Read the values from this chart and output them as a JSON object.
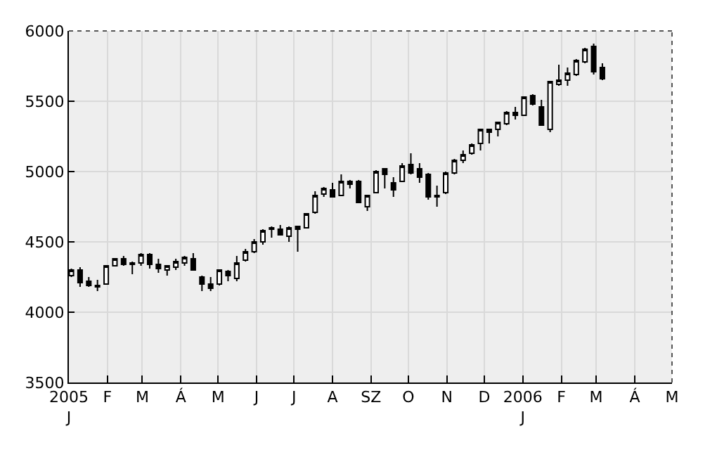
{
  "chart_data": {
    "type": "candlestick",
    "x": [
      "2005-01-03",
      "2005-01-10",
      "2005-01-17",
      "2005-01-24",
      "2005-01-31",
      "2005-02-07",
      "2005-02-14",
      "2005-02-21",
      "2005-02-28",
      "2005-03-07",
      "2005-03-14",
      "2005-03-21",
      "2005-03-28",
      "2005-04-04",
      "2005-04-11",
      "2005-04-18",
      "2005-04-25",
      "2005-05-02",
      "2005-05-09",
      "2005-05-16",
      "2005-05-23",
      "2005-05-30",
      "2005-06-06",
      "2005-06-13",
      "2005-06-20",
      "2005-06-27",
      "2005-07-04",
      "2005-07-11",
      "2005-07-18",
      "2005-07-25",
      "2005-08-01",
      "2005-08-08",
      "2005-08-15",
      "2005-08-22",
      "2005-08-29",
      "2005-09-05",
      "2005-09-12",
      "2005-09-19",
      "2005-09-26",
      "2005-10-03",
      "2005-10-10",
      "2005-10-17",
      "2005-10-24",
      "2005-10-31",
      "2005-11-07",
      "2005-11-14",
      "2005-11-21",
      "2005-11-28",
      "2005-12-05",
      "2005-12-12",
      "2005-12-19",
      "2005-12-26",
      "2006-01-02",
      "2006-01-09",
      "2006-01-16",
      "2006-01-23",
      "2006-01-30",
      "2006-02-06",
      "2006-02-13",
      "2006-02-20",
      "2006-02-27",
      "2006-03-06"
    ],
    "ohlc": [
      [
        4260,
        4310,
        4250,
        4300
      ],
      [
        4300,
        4320,
        4180,
        4210
      ],
      [
        4220,
        4250,
        4180,
        4190
      ],
      [
        4190,
        4230,
        4150,
        4180
      ],
      [
        4200,
        4330,
        4200,
        4330
      ],
      [
        4330,
        4380,
        4330,
        4380
      ],
      [
        4380,
        4400,
        4330,
        4340
      ],
      [
        4350,
        4360,
        4270,
        4340
      ],
      [
        4350,
        4420,
        4330,
        4410
      ],
      [
        4410,
        4420,
        4310,
        4340
      ],
      [
        4340,
        4380,
        4280,
        4310
      ],
      [
        4300,
        4330,
        4260,
        4330
      ],
      [
        4320,
        4380,
        4300,
        4360
      ],
      [
        4350,
        4400,
        4330,
        4390
      ],
      [
        4380,
        4420,
        4300,
        4300
      ],
      [
        4250,
        4260,
        4150,
        4200
      ],
      [
        4200,
        4250,
        4150,
        4170
      ],
      [
        4200,
        4300,
        4190,
        4300
      ],
      [
        4290,
        4300,
        4220,
        4260
      ],
      [
        4240,
        4400,
        4220,
        4350
      ],
      [
        4370,
        4450,
        4360,
        4430
      ],
      [
        4430,
        4520,
        4420,
        4500
      ],
      [
        4500,
        4590,
        4480,
        4580
      ],
      [
        4600,
        4610,
        4530,
        4590
      ],
      [
        4590,
        4620,
        4550,
        4550
      ],
      [
        4540,
        4610,
        4500,
        4600
      ],
      [
        4610,
        4610,
        4430,
        4590
      ],
      [
        4600,
        4700,
        4600,
        4700
      ],
      [
        4710,
        4860,
        4700,
        4830
      ],
      [
        4840,
        4890,
        4820,
        4880
      ],
      [
        4870,
        4920,
        4820,
        4820
      ],
      [
        4830,
        4980,
        4830,
        4930
      ],
      [
        4930,
        4940,
        4880,
        4910
      ],
      [
        4930,
        4940,
        4780,
        4780
      ],
      [
        4750,
        4830,
        4720,
        4830
      ],
      [
        4850,
        5010,
        4850,
        5000
      ],
      [
        5020,
        5020,
        4880,
        4980
      ],
      [
        4920,
        4960,
        4820,
        4870
      ],
      [
        4930,
        5060,
        4930,
        5040
      ],
      [
        5050,
        5130,
        4980,
        4990
      ],
      [
        5020,
        5060,
        4920,
        4960
      ],
      [
        4980,
        4990,
        4800,
        4820
      ],
      [
        4830,
        4900,
        4750,
        4820
      ],
      [
        4850,
        5000,
        4840,
        4990
      ],
      [
        4990,
        5090,
        4980,
        5080
      ],
      [
        5080,
        5150,
        5060,
        5120
      ],
      [
        5130,
        5200,
        5120,
        5190
      ],
      [
        5200,
        5300,
        5150,
        5300
      ],
      [
        5300,
        5300,
        5200,
        5280
      ],
      [
        5300,
        5350,
        5250,
        5350
      ],
      [
        5340,
        5430,
        5330,
        5420
      ],
      [
        5420,
        5460,
        5370,
        5400
      ],
      [
        5400,
        5530,
        5400,
        5530
      ],
      [
        5540,
        5550,
        5470,
        5480
      ],
      [
        5460,
        5510,
        5330,
        5330
      ],
      [
        5300,
        5640,
        5280,
        5640
      ],
      [
        5620,
        5760,
        5610,
        5650
      ],
      [
        5650,
        5740,
        5610,
        5700
      ],
      [
        5690,
        5800,
        5680,
        5790
      ],
      [
        5780,
        5880,
        5770,
        5870
      ],
      [
        5890,
        5910,
        5690,
        5710
      ],
      [
        5740,
        5770,
        5650,
        5660
      ]
    ],
    "colors": [
      "#ffffff",
      "#000000",
      "#000000",
      "#000000",
      "#ffffff",
      "#ffffff",
      "#000000",
      "#000000",
      "#ffffff",
      "#000000",
      "#000000",
      "#ffffff",
      "#ffffff",
      "#ffffff",
      "#000000",
      "#000000",
      "#000000",
      "#ffffff",
      "#000000",
      "#ffffff",
      "#ffffff",
      "#ffffff",
      "#ffffff",
      "#000000",
      "#000000",
      "#ffffff",
      "#000000",
      "#ffffff",
      "#ffffff",
      "#ffffff",
      "#000000",
      "#ffffff",
      "#000000",
      "#000000",
      "#ffffff",
      "#ffffff",
      "#000000",
      "#000000",
      "#ffffff",
      "#000000",
      "#000000",
      "#000000",
      "#000000",
      "#ffffff",
      "#ffffff",
      "#ffffff",
      "#ffffff",
      "#ffffff",
      "#000000",
      "#ffffff",
      "#ffffff",
      "#000000",
      "#ffffff",
      "#000000",
      "#000000",
      "#ffffff",
      "#ffffff",
      "#ffffff",
      "#ffffff",
      "#ffffff",
      "#000000",
      "#000000"
    ],
    "xlim": [
      "2005-01-01",
      "2006-05-01"
    ],
    "xticks": [
      {
        "value": "2005-01-01",
        "label": "2005\nJ"
      },
      {
        "value": "2005-02-01",
        "label": "F"
      },
      {
        "value": "2005-03-01",
        "label": "M"
      },
      {
        "value": "2005-04-01",
        "label": "Á"
      },
      {
        "value": "2005-05-01",
        "label": "M"
      },
      {
        "value": "2005-06-01",
        "label": "J"
      },
      {
        "value": "2005-07-01",
        "label": "J"
      },
      {
        "value": "2005-08-01",
        "label": "A"
      },
      {
        "value": "2005-09-01",
        "label": "SZ"
      },
      {
        "value": "2005-10-01",
        "label": "O"
      },
      {
        "value": "2005-11-01",
        "label": "N"
      },
      {
        "value": "2005-12-01",
        "label": "D"
      },
      {
        "value": "2006-01-01",
        "label": "2006\nJ"
      },
      {
        "value": "2006-02-01",
        "label": "F"
      },
      {
        "value": "2006-03-01",
        "label": "M"
      },
      {
        "value": "2006-04-01",
        "label": "Á"
      },
      {
        "value": "2006-05-01",
        "label": "M"
      }
    ],
    "ylim": [
      3500,
      6000
    ],
    "yticks": [
      3500,
      4000,
      4500,
      5000,
      5500,
      6000
    ],
    "grid": true
  }
}
